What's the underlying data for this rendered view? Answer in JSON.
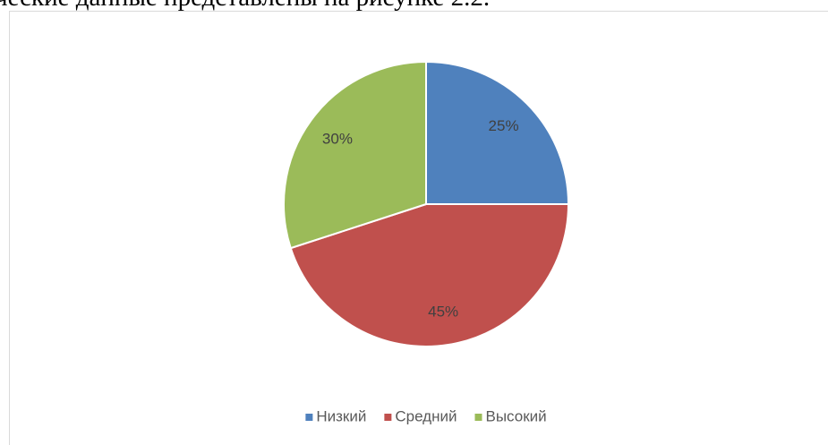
{
  "heading_text": "ческие данные представлены на рисунке 2.2.",
  "chart_data": {
    "type": "pie",
    "categories": [
      "Низкий",
      "Средний",
      "Высокий"
    ],
    "values": [
      25,
      45,
      30
    ],
    "value_labels": [
      "25%",
      "45%",
      "30%"
    ],
    "colors": [
      "#4f81bd",
      "#c0504d",
      "#9bbb59"
    ],
    "legend": "bottom"
  }
}
